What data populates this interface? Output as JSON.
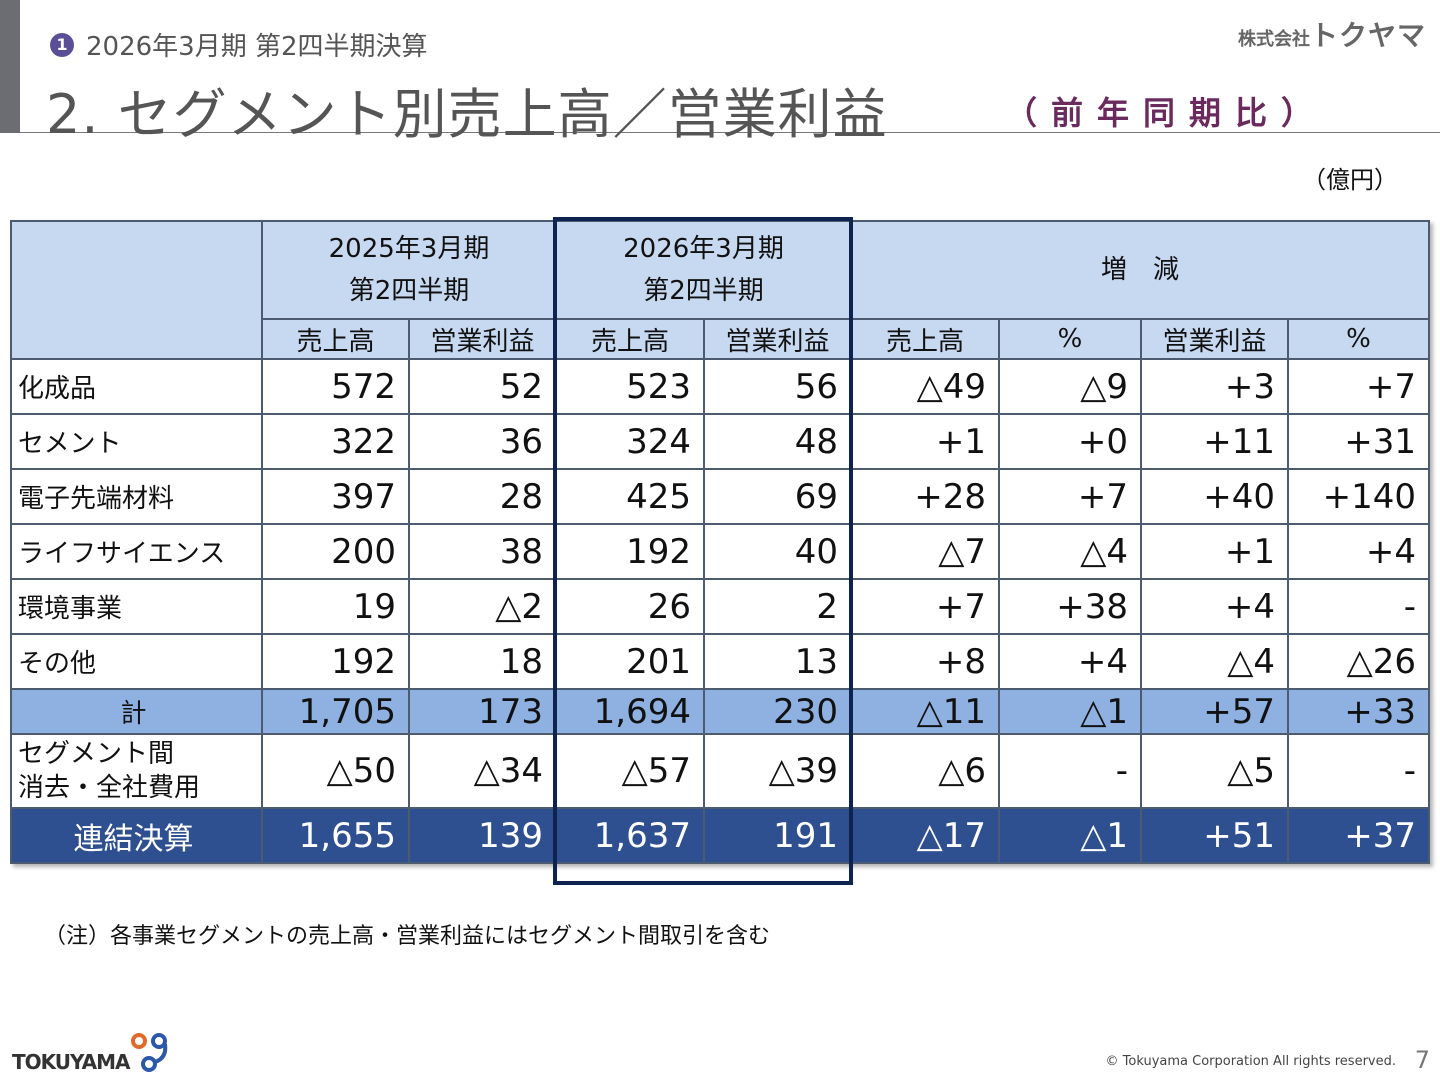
{
  "header": {
    "section_number": "1",
    "subtitle": "2026年3月期 第2四半期決算",
    "title": "2. セグメント別売上高／営業利益",
    "comparison": "（前年同期比）",
    "brand_prefix": "株式会社",
    "brand_name": "トクヤマ",
    "accent_color": "#6b2a5e"
  },
  "unit": "（億円）",
  "table": {
    "group_headers": [
      "2025年3月期\n第2四半期",
      "2026年3月期\n第2四半期",
      "増 減"
    ],
    "group_headers_lines": [
      [
        "2025年3月期",
        "第2四半期"
      ],
      [
        "2026年3月期",
        "第2四半期"
      ],
      [
        "増　減"
      ]
    ],
    "sub_headers": [
      "売上高",
      "営業利益",
      "売上高",
      "営業利益",
      "売上高",
      "%",
      "営業利益",
      "%"
    ],
    "rows": [
      {
        "label": "化成品",
        "values": [
          "572",
          "52",
          "523",
          "56",
          "△49",
          "△9",
          "+3",
          "+7"
        ]
      },
      {
        "label": "セメント",
        "values": [
          "322",
          "36",
          "324",
          "48",
          "+1",
          "+0",
          "+11",
          "+31"
        ]
      },
      {
        "label": "電子先端材料",
        "values": [
          "397",
          "28",
          "425",
          "69",
          "+28",
          "+7",
          "+40",
          "+140"
        ]
      },
      {
        "label": "ライフサイエンス",
        "values": [
          "200",
          "38",
          "192",
          "40",
          "△7",
          "△4",
          "+1",
          "+4"
        ]
      },
      {
        "label": "環境事業",
        "values": [
          "19",
          "△2",
          "26",
          "2",
          "+7",
          "+38",
          "+4",
          "-"
        ]
      },
      {
        "label": "その他",
        "values": [
          "192",
          "18",
          "201",
          "13",
          "+8",
          "+4",
          "△4",
          "△26"
        ]
      }
    ],
    "total": {
      "label": "計",
      "values": [
        "1,705",
        "173",
        "1,694",
        "230",
        "△11",
        "△1",
        "+57",
        "+33"
      ]
    },
    "elimination": {
      "label_lines": [
        "セグメント間",
        "消去・全社費用"
      ],
      "values": [
        "△50",
        "△34",
        "△57",
        "△39",
        "△6",
        "-",
        "△5",
        "-"
      ]
    },
    "consolidated": {
      "label": "連結決算",
      "values": [
        "1,655",
        "139",
        "1,637",
        "191",
        "△17",
        "△1",
        "+51",
        "+37"
      ]
    }
  },
  "note": "（注）各事業セグメントの売上高・営業利益にはセグメント間取引を含む",
  "footer": {
    "logo_text": "TOKUYAMA",
    "copyright": "© Tokuyama Corporation All rights reserved.",
    "page_number": "7"
  }
}
